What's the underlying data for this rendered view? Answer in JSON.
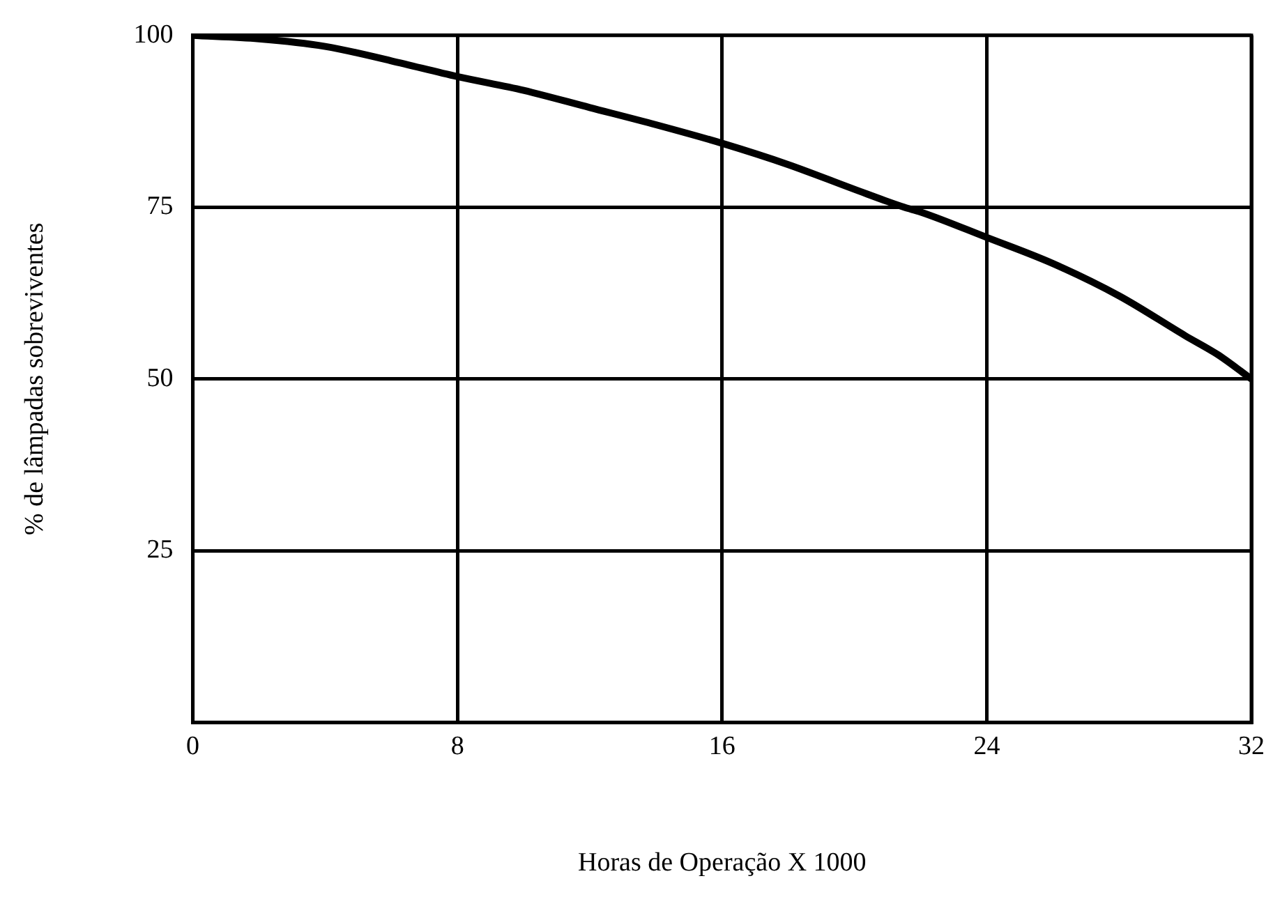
{
  "chart_data": {
    "type": "line",
    "xlabel": "Horas de Operação X 1000",
    "ylabel": "% de lâmpadas sobreviventes",
    "x": [
      0,
      2,
      4,
      6,
      8,
      10,
      12,
      14,
      16,
      18,
      20,
      21.5,
      22,
      24,
      26,
      28,
      30,
      31,
      32
    ],
    "series": [
      {
        "color": "#000000",
        "values": [
          100,
          99.5,
          98.4,
          96.3,
          94,
          92,
          89.5,
          87,
          84.3,
          81.2,
          77.6,
          75,
          74.3,
          70.6,
          66.8,
          62.1,
          56.3,
          53.5,
          50
        ]
      }
    ],
    "xlim": [
      0,
      32
    ],
    "xticks": [
      0,
      8,
      16,
      24,
      32
    ],
    "ylim": [
      0,
      100
    ],
    "yticks": [
      25,
      50,
      75,
      100
    ],
    "grid": true,
    "legend": false,
    "marker": "none",
    "line_style": "solid"
  }
}
